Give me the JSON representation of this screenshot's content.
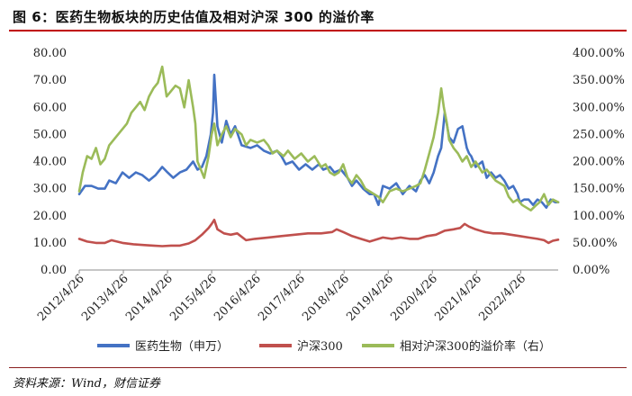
{
  "title": "图 6：医药生物板块的历史估值及相对沪深 300 的溢价率",
  "source": "资料来源：Wind，财信证券",
  "colors": {
    "title_rule": "#c00000",
    "bottom_rule": "#8a1f1f"
  },
  "chart_data": {
    "type": "line",
    "x_tick_labels": [
      "2012/4/26",
      "2013/4/26",
      "2014/4/26",
      "2015/4/26",
      "2016/4/26",
      "2017/4/26",
      "2018/4/26",
      "2019/4/26",
      "2020/4/26",
      "2021/4/26",
      "2022/4/26"
    ],
    "y_left_ticks": [
      "0.00",
      "10.00",
      "20.00",
      "30.00",
      "40.00",
      "50.00",
      "60.00",
      "70.00",
      "80.00"
    ],
    "y_right_ticks": [
      "0.00%",
      "50.00%",
      "100.00%",
      "150.00%",
      "200.00%",
      "250.00%",
      "300.00%",
      "350.00%",
      "400.00%"
    ],
    "ylim_left": [
      0,
      80
    ],
    "ylim_right": [
      0,
      400
    ],
    "x_range": [
      2012.32,
      2023.17
    ],
    "grid": false,
    "legend_position": "bottom",
    "series": [
      {
        "name": "医药生物（申万）",
        "axis": "left",
        "color": "#4472c4",
        "x": [
          2012.32,
          2012.45,
          2012.6,
          2012.75,
          2012.9,
          2013.0,
          2013.15,
          2013.3,
          2013.45,
          2013.6,
          2013.75,
          2013.9,
          2014.05,
          2014.2,
          2014.32,
          2014.45,
          2014.6,
          2014.75,
          2014.9,
          2015.0,
          2015.1,
          2015.2,
          2015.3,
          2015.35,
          2015.38,
          2015.45,
          2015.55,
          2015.65,
          2015.75,
          2015.85,
          2016.0,
          2016.2,
          2016.35,
          2016.5,
          2016.65,
          2016.8,
          2016.9,
          2017.0,
          2017.15,
          2017.3,
          2017.45,
          2017.6,
          2017.75,
          2017.85,
          2018.0,
          2018.1,
          2018.25,
          2018.4,
          2018.5,
          2018.6,
          2018.75,
          2018.9,
          2019.0,
          2019.1,
          2019.2,
          2019.35,
          2019.5,
          2019.65,
          2019.8,
          2019.95,
          2020.05,
          2020.15,
          2020.25,
          2020.35,
          2020.45,
          2020.52,
          2020.6,
          2020.7,
          2020.8,
          2020.9,
          2021.0,
          2021.1,
          2021.15,
          2021.2,
          2021.3,
          2021.45,
          2021.55,
          2021.65,
          2021.75,
          2021.85,
          2021.95,
          2022.05,
          2022.15,
          2022.25,
          2022.3,
          2022.4,
          2022.5,
          2022.6,
          2022.7,
          2022.8,
          2022.9,
          2023.0,
          2023.1,
          2023.17
        ],
        "values": [
          28,
          31,
          31,
          30,
          30,
          33,
          32,
          36,
          34,
          36,
          35,
          33,
          35,
          38,
          36,
          34,
          36,
          37,
          40,
          37,
          38,
          42,
          50,
          58,
          72,
          53,
          47,
          55,
          50,
          53,
          46,
          45,
          46,
          44,
          43,
          44,
          42,
          39,
          40,
          37,
          39,
          37,
          39,
          37,
          38,
          36,
          37,
          34,
          31,
          33,
          30,
          28,
          28,
          24,
          31,
          30,
          32,
          28,
          31,
          29,
          33,
          35,
          32,
          36,
          42,
          45,
          58,
          49,
          47,
          52,
          53,
          45,
          43,
          42,
          38,
          40,
          34,
          36,
          34,
          35,
          33,
          30,
          31,
          28,
          25,
          26,
          26,
          24,
          26,
          25,
          23,
          26,
          25,
          25
        ]
      },
      {
        "name": "沪深300",
        "axis": "left",
        "color": "#c0504d",
        "x": [
          2012.32,
          2012.5,
          2012.7,
          2012.9,
          2013.05,
          2013.3,
          2013.55,
          2013.8,
          2014.0,
          2014.2,
          2014.4,
          2014.6,
          2014.8,
          2014.95,
          2015.1,
          2015.25,
          2015.32,
          2015.38,
          2015.45,
          2015.6,
          2015.75,
          2015.9,
          2016.1,
          2016.3,
          2016.6,
          2016.9,
          2017.2,
          2017.5,
          2017.8,
          2018.05,
          2018.15,
          2018.3,
          2018.5,
          2018.7,
          2018.9,
          2019.0,
          2019.2,
          2019.4,
          2019.6,
          2019.8,
          2020.0,
          2020.2,
          2020.4,
          2020.6,
          2020.8,
          2020.95,
          2021.05,
          2021.15,
          2021.3,
          2021.5,
          2021.7,
          2021.9,
          2022.1,
          2022.3,
          2022.5,
          2022.7,
          2022.85,
          2022.95,
          2023.05,
          2023.17
        ],
        "values": [
          11.5,
          10.5,
          10,
          10,
          11,
          10,
          9.5,
          9.2,
          9,
          8.8,
          9,
          9,
          9.8,
          11,
          13,
          15.5,
          17,
          18.5,
          15,
          13.5,
          13,
          13.5,
          11,
          11.5,
          12,
          12.5,
          13,
          13.5,
          13.5,
          14,
          15,
          14,
          12.5,
          11.5,
          10.5,
          11,
          12,
          11.5,
          12,
          11.5,
          11.5,
          12.5,
          13,
          14.5,
          15,
          15.5,
          17,
          16,
          15,
          14,
          13.5,
          13.5,
          13,
          12.5,
          12,
          11.5,
          11,
          10,
          10.8,
          11.2
        ]
      },
      {
        "name": "相对沪深300的溢价率（右）",
        "axis": "right",
        "color": "#9bbb59",
        "x": [
          2012.32,
          2012.4,
          2012.5,
          2012.6,
          2012.7,
          2012.8,
          2012.9,
          2013.0,
          2013.1,
          2013.2,
          2013.3,
          2013.4,
          2013.5,
          2013.6,
          2013.7,
          2013.8,
          2013.9,
          2014.0,
          2014.1,
          2014.2,
          2014.3,
          2014.4,
          2014.5,
          2014.6,
          2014.7,
          2014.8,
          2014.9,
          2014.95,
          2015.0,
          2015.05,
          2015.15,
          2015.25,
          2015.32,
          2015.38,
          2015.45,
          2015.55,
          2015.65,
          2015.75,
          2015.85,
          2016.0,
          2016.1,
          2016.2,
          2016.35,
          2016.5,
          2016.6,
          2016.7,
          2016.8,
          2016.95,
          2017.05,
          2017.2,
          2017.35,
          2017.5,
          2017.65,
          2017.8,
          2017.9,
          2018.0,
          2018.1,
          2018.2,
          2018.3,
          2018.4,
          2018.5,
          2018.6,
          2018.7,
          2018.8,
          2018.9,
          2019.0,
          2019.1,
          2019.2,
          2019.35,
          2019.5,
          2019.65,
          2019.8,
          2019.95,
          2020.05,
          2020.15,
          2020.25,
          2020.35,
          2020.45,
          2020.52,
          2020.58,
          2020.65,
          2020.7,
          2020.8,
          2020.9,
          2021.0,
          2021.1,
          2021.2,
          2021.3,
          2021.45,
          2021.55,
          2021.65,
          2021.75,
          2021.85,
          2021.95,
          2022.05,
          2022.15,
          2022.25,
          2022.35,
          2022.45,
          2022.55,
          2022.65,
          2022.75,
          2022.85,
          2022.95,
          2023.05,
          2023.17
        ],
        "values": [
          145,
          180,
          210,
          205,
          225,
          195,
          205,
          230,
          240,
          250,
          260,
          270,
          290,
          300,
          310,
          295,
          320,
          335,
          345,
          375,
          320,
          330,
          340,
          335,
          300,
          350,
          300,
          270,
          200,
          190,
          170,
          210,
          250,
          270,
          230,
          250,
          265,
          245,
          260,
          250,
          230,
          240,
          235,
          240,
          230,
          215,
          220,
          210,
          220,
          205,
          215,
          200,
          210,
          190,
          195,
          180,
          175,
          180,
          195,
          170,
          160,
          175,
          165,
          150,
          145,
          140,
          135,
          125,
          145,
          150,
          145,
          150,
          155,
          160,
          185,
          215,
          245,
          290,
          335,
          300,
          270,
          240,
          225,
          215,
          200,
          210,
          190,
          200,
          180,
          185,
          175,
          165,
          160,
          155,
          135,
          125,
          130,
          120,
          115,
          110,
          118,
          125,
          140,
          120,
          130,
          125
        ]
      }
    ]
  }
}
